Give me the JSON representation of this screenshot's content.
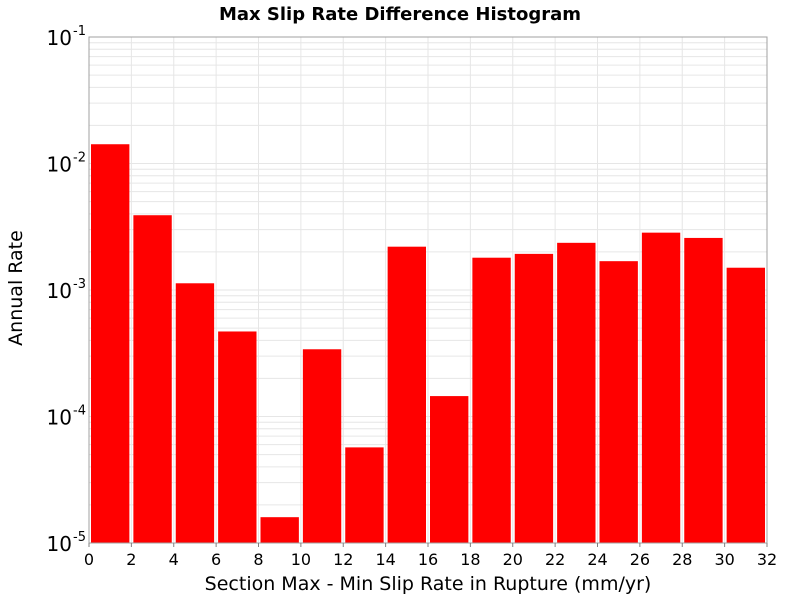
{
  "chart_data": {
    "type": "bar",
    "title": "Max Slip Rate Difference Histogram",
    "xlabel": "Section Max - Min Slip Rate in Rupture (mm/yr)",
    "ylabel": "Annual Rate",
    "y_scale": "log",
    "xlim": [
      0,
      32
    ],
    "ylim": [
      1e-05,
      0.1
    ],
    "grid": true,
    "bar_color": "#ff0000",
    "grid_color": "#e6e6e6",
    "x_ticks": [
      "0",
      "2",
      "4",
      "6",
      "8",
      "10",
      "12",
      "14",
      "16",
      "18",
      "20",
      "22",
      "24",
      "26",
      "28",
      "30",
      "32"
    ],
    "y_ticks": [
      {
        "base": "10",
        "exp": "-5",
        "value": 1e-05
      },
      {
        "base": "10",
        "exp": "-4",
        "value": 0.0001
      },
      {
        "base": "10",
        "exp": "-3",
        "value": 0.001
      },
      {
        "base": "10",
        "exp": "-2",
        "value": 0.01
      },
      {
        "base": "10",
        "exp": "-1",
        "value": 0.1
      }
    ],
    "bins": [
      {
        "x0": 0,
        "x1": 2,
        "value": 0.0142
      },
      {
        "x0": 2,
        "x1": 4,
        "value": 0.0039
      },
      {
        "x0": 4,
        "x1": 6,
        "value": 0.00113
      },
      {
        "x0": 6,
        "x1": 8,
        "value": 0.00047
      },
      {
        "x0": 8,
        "x1": 10,
        "value": 1.6e-05
      },
      {
        "x0": 10,
        "x1": 12,
        "value": 0.00034
      },
      {
        "x0": 12,
        "x1": 14,
        "value": 5.7e-05
      },
      {
        "x0": 14,
        "x1": 16,
        "value": 0.0022
      },
      {
        "x0": 16,
        "x1": 18,
        "value": 0.000145
      },
      {
        "x0": 18,
        "x1": 20,
        "value": 0.0018
      },
      {
        "x0": 20,
        "x1": 22,
        "value": 0.00193
      },
      {
        "x0": 22,
        "x1": 24,
        "value": 0.00236
      },
      {
        "x0": 24,
        "x1": 26,
        "value": 0.00169
      },
      {
        "x0": 26,
        "x1": 28,
        "value": 0.00284
      },
      {
        "x0": 28,
        "x1": 30,
        "value": 0.00258
      },
      {
        "x0": 30,
        "x1": 32,
        "value": 0.0015
      }
    ]
  }
}
